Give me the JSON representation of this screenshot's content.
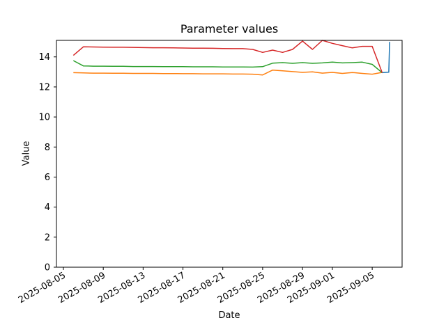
{
  "chart_data": {
    "type": "line",
    "title": "Parameter values",
    "xlabel": "Date",
    "ylabel": "Value",
    "grid": false,
    "legend": "none",
    "x_axis": {
      "epoch": "2025-08-05",
      "range_days": [
        -0.7,
        34.0
      ],
      "tick_labels": [
        "2025-08-05",
        "2025-08-09",
        "2025-08-13",
        "2025-08-17",
        "2025-08-21",
        "2025-08-25",
        "2025-08-29",
        "2025-09-01",
        "2025-09-05"
      ],
      "tick_rotation_deg": 30
    },
    "y_axis": {
      "range": [
        0,
        15.1
      ],
      "ticks": [
        0,
        2,
        4,
        6,
        8,
        10,
        12,
        14
      ]
    },
    "series": [
      {
        "name": "blue",
        "color": "#1f77b4",
        "points": [
          [
            "2025-09-06T00:00",
            12.95
          ],
          [
            "2025-09-06T16:00",
            12.98
          ],
          [
            "2025-09-06T18:00",
            15.0
          ]
        ]
      },
      {
        "name": "orange",
        "color": "#ff7f0e",
        "points": [
          [
            "2025-08-06",
            12.95
          ],
          [
            "2025-08-07",
            12.93
          ],
          [
            "2025-08-08",
            12.92
          ],
          [
            "2025-08-09",
            12.92
          ],
          [
            "2025-08-10",
            12.91
          ],
          [
            "2025-08-11",
            12.91
          ],
          [
            "2025-08-12",
            12.9
          ],
          [
            "2025-08-13",
            12.9
          ],
          [
            "2025-08-14",
            12.9
          ],
          [
            "2025-08-15",
            12.89
          ],
          [
            "2025-08-16",
            12.89
          ],
          [
            "2025-08-17",
            12.88
          ],
          [
            "2025-08-18",
            12.88
          ],
          [
            "2025-08-19",
            12.87
          ],
          [
            "2025-08-20",
            12.87
          ],
          [
            "2025-08-21",
            12.87
          ],
          [
            "2025-08-22",
            12.86
          ],
          [
            "2025-08-23",
            12.86
          ],
          [
            "2025-08-24",
            12.85
          ],
          [
            "2025-08-25",
            12.8
          ],
          [
            "2025-08-26",
            13.12
          ],
          [
            "2025-08-27",
            13.07
          ],
          [
            "2025-08-28",
            13.02
          ],
          [
            "2025-08-29",
            12.97
          ],
          [
            "2025-08-30",
            13.0
          ],
          [
            "2025-08-31",
            12.92
          ],
          [
            "2025-09-01",
            12.97
          ],
          [
            "2025-09-02",
            12.9
          ],
          [
            "2025-09-03",
            12.96
          ],
          [
            "2025-09-04",
            12.9
          ],
          [
            "2025-09-05",
            12.85
          ],
          [
            "2025-09-06",
            12.97
          ]
        ]
      },
      {
        "name": "green",
        "color": "#2ca02c",
        "points": [
          [
            "2025-08-06",
            13.75
          ],
          [
            "2025-08-07",
            13.4
          ],
          [
            "2025-08-08",
            13.38
          ],
          [
            "2025-08-09",
            13.38
          ],
          [
            "2025-08-10",
            13.37
          ],
          [
            "2025-08-11",
            13.37
          ],
          [
            "2025-08-12",
            13.36
          ],
          [
            "2025-08-13",
            13.36
          ],
          [
            "2025-08-14",
            13.36
          ],
          [
            "2025-08-15",
            13.35
          ],
          [
            "2025-08-16",
            13.35
          ],
          [
            "2025-08-17",
            13.35
          ],
          [
            "2025-08-18",
            13.34
          ],
          [
            "2025-08-19",
            13.34
          ],
          [
            "2025-08-20",
            13.34
          ],
          [
            "2025-08-21",
            13.33
          ],
          [
            "2025-08-22",
            13.33
          ],
          [
            "2025-08-23",
            13.33
          ],
          [
            "2025-08-24",
            13.32
          ],
          [
            "2025-08-25",
            13.35
          ],
          [
            "2025-08-26",
            13.58
          ],
          [
            "2025-08-27",
            13.62
          ],
          [
            "2025-08-28",
            13.57
          ],
          [
            "2025-08-29",
            13.62
          ],
          [
            "2025-08-30",
            13.57
          ],
          [
            "2025-08-31",
            13.6
          ],
          [
            "2025-09-01",
            13.65
          ],
          [
            "2025-09-02",
            13.6
          ],
          [
            "2025-09-03",
            13.62
          ],
          [
            "2025-09-04",
            13.65
          ],
          [
            "2025-09-05",
            13.5
          ],
          [
            "2025-09-06",
            12.95
          ]
        ]
      },
      {
        "name": "red",
        "color": "#d62728",
        "points": [
          [
            "2025-08-06",
            14.1
          ],
          [
            "2025-08-07",
            14.67
          ],
          [
            "2025-08-08",
            14.66
          ],
          [
            "2025-08-09",
            14.65
          ],
          [
            "2025-08-10",
            14.64
          ],
          [
            "2025-08-11",
            14.64
          ],
          [
            "2025-08-12",
            14.63
          ],
          [
            "2025-08-13",
            14.62
          ],
          [
            "2025-08-14",
            14.61
          ],
          [
            "2025-08-15",
            14.61
          ],
          [
            "2025-08-16",
            14.6
          ],
          [
            "2025-08-17",
            14.59
          ],
          [
            "2025-08-18",
            14.58
          ],
          [
            "2025-08-19",
            14.58
          ],
          [
            "2025-08-20",
            14.57
          ],
          [
            "2025-08-21",
            14.56
          ],
          [
            "2025-08-22",
            14.55
          ],
          [
            "2025-08-23",
            14.55
          ],
          [
            "2025-08-24",
            14.5
          ],
          [
            "2025-08-25",
            14.3
          ],
          [
            "2025-08-26",
            14.45
          ],
          [
            "2025-08-27",
            14.3
          ],
          [
            "2025-08-28",
            14.5
          ],
          [
            "2025-08-29",
            15.05
          ],
          [
            "2025-08-30",
            14.5
          ],
          [
            "2025-08-31",
            15.1
          ],
          [
            "2025-09-01",
            14.9
          ],
          [
            "2025-09-02",
            14.75
          ],
          [
            "2025-09-03",
            14.6
          ],
          [
            "2025-09-04",
            14.7
          ],
          [
            "2025-09-05",
            14.7
          ],
          [
            "2025-09-06",
            12.95
          ]
        ]
      }
    ]
  }
}
